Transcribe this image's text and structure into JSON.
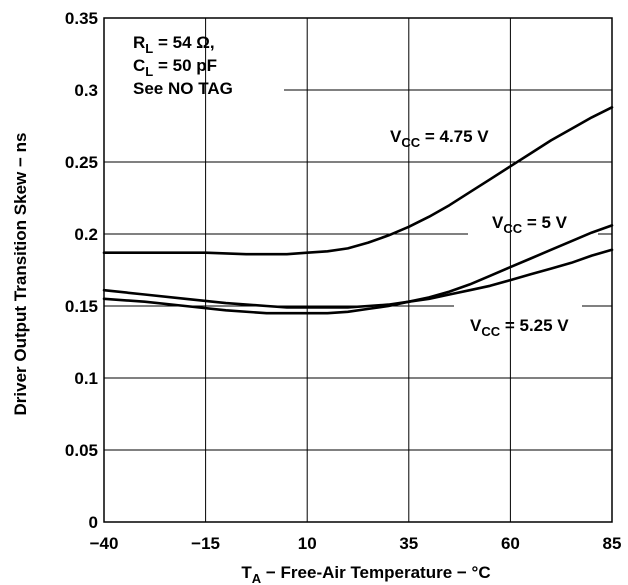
{
  "chart_data": {
    "type": "line",
    "xlabel": {
      "main": "T",
      "sub": "A",
      "rest": " − Free-Air Temperature − °C"
    },
    "ylabel": "Driver Output Transition Skew − ns",
    "xlim": [
      -40,
      85
    ],
    "ylim": [
      0,
      0.35
    ],
    "x_ticks": [
      -40,
      -15,
      10,
      35,
      60,
      85
    ],
    "x_tick_labels": [
      "−40",
      "−15",
      "10",
      "35",
      "60",
      "85"
    ],
    "y_ticks": [
      0,
      0.05,
      0.1,
      0.15,
      0.2,
      0.25,
      0.3,
      0.35
    ],
    "y_tick_labels": [
      "0",
      "0.05",
      "0.1",
      "0.15",
      "0.2",
      "0.25",
      "0.3",
      "0.35"
    ],
    "grid": true,
    "conditions": [
      {
        "main": "R",
        "sub": "L",
        "rest": " = 54 Ω,"
      },
      {
        "main": "C",
        "sub": "L",
        "rest": " = 50 pF"
      },
      {
        "main": "See NO TAG",
        "sub": "",
        "rest": ""
      }
    ],
    "series": [
      {
        "name": {
          "main": "V",
          "sub": "CC",
          "rest": " = 4.75 V"
        },
        "x": [
          -40,
          -25,
          -15,
          -5,
          5,
          10,
          15,
          20,
          25,
          30,
          35,
          40,
          45,
          50,
          55,
          60,
          65,
          70,
          75,
          80,
          85
        ],
        "y": [
          0.187,
          0.187,
          0.187,
          0.186,
          0.186,
          0.187,
          0.188,
          0.19,
          0.194,
          0.199,
          0.205,
          0.212,
          0.22,
          0.229,
          0.238,
          0.247,
          0.256,
          0.265,
          0.273,
          0.281,
          0.288
        ]
      },
      {
        "name": {
          "main": "V",
          "sub": "CC",
          "rest": " = 5 V"
        },
        "x": [
          -40,
          -30,
          -20,
          -10,
          0,
          5,
          10,
          15,
          20,
          25,
          30,
          35,
          40,
          45,
          50,
          55,
          60,
          65,
          70,
          75,
          80,
          85
        ],
        "y": [
          0.161,
          0.158,
          0.155,
          0.152,
          0.15,
          0.149,
          0.149,
          0.149,
          0.149,
          0.15,
          0.151,
          0.153,
          0.156,
          0.16,
          0.165,
          0.171,
          0.177,
          0.183,
          0.189,
          0.195,
          0.201,
          0.206
        ]
      },
      {
        "name": {
          "main": "V",
          "sub": "CC",
          "rest": " = 5.25 V"
        },
        "x": [
          -40,
          -30,
          -20,
          -10,
          0,
          5,
          10,
          15,
          20,
          25,
          30,
          35,
          40,
          45,
          50,
          55,
          60,
          65,
          70,
          75,
          80,
          85
        ],
        "y": [
          0.155,
          0.153,
          0.15,
          0.147,
          0.145,
          0.145,
          0.145,
          0.145,
          0.146,
          0.148,
          0.15,
          0.153,
          0.155,
          0.158,
          0.161,
          0.164,
          0.168,
          0.172,
          0.176,
          0.18,
          0.185,
          0.189
        ]
      }
    ]
  }
}
